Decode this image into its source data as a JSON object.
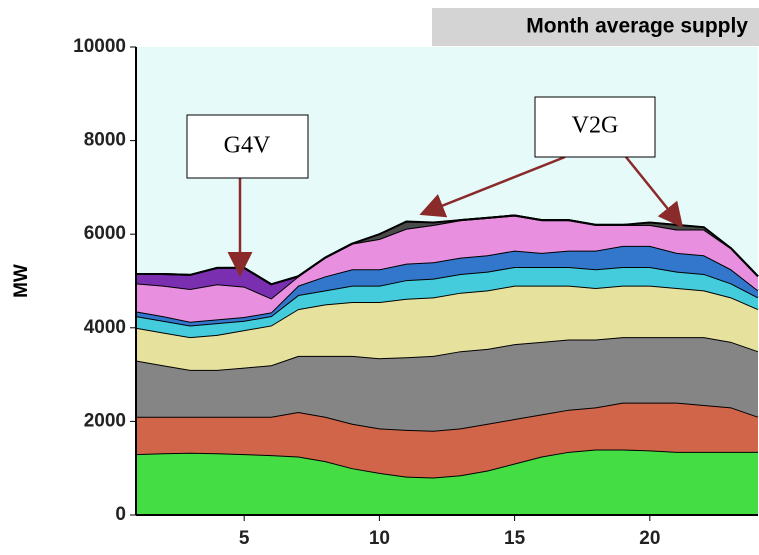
{
  "chart_data": {
    "type": "stacked-area",
    "title": "Month average supply",
    "y_label": "MW",
    "x": [
      1,
      2,
      3,
      4,
      5,
      6,
      7,
      8,
      9,
      10,
      11,
      12,
      13,
      14,
      15,
      16,
      17,
      18,
      19,
      20,
      21,
      22,
      23,
      24
    ],
    "xlim": [
      1,
      24
    ],
    "xticks": [
      5,
      10,
      15,
      20
    ],
    "ylim": [
      0,
      10000
    ],
    "yticks": [
      0,
      2000,
      4000,
      6000,
      8000,
      10000
    ],
    "background": "#e6fafa",
    "series": [
      {
        "color": "#44dd44",
        "values": [
          1300,
          1320,
          1330,
          1320,
          1300,
          1280,
          1250,
          1150,
          1000,
          900,
          820,
          800,
          850,
          950,
          1100,
          1250,
          1350,
          1400,
          1400,
          1380,
          1350,
          1350,
          1350,
          1350
        ]
      },
      {
        "color": "#d0654a",
        "values": [
          800,
          780,
          770,
          780,
          800,
          820,
          950,
          950,
          950,
          950,
          1000,
          1000,
          1000,
          1000,
          950,
          900,
          900,
          900,
          1000,
          1020,
          1050,
          1000,
          950,
          750
        ]
      },
      {
        "color": "#858585",
        "values": [
          1200,
          1100,
          1000,
          1000,
          1050,
          1100,
          1200,
          1300,
          1450,
          1500,
          1550,
          1600,
          1650,
          1600,
          1600,
          1550,
          1500,
          1450,
          1400,
          1400,
          1400,
          1450,
          1400,
          1400
        ]
      },
      {
        "color": "#e6e29e",
        "values": [
          700,
          700,
          700,
          750,
          800,
          850,
          1000,
          1100,
          1150,
          1200,
          1250,
          1250,
          1250,
          1250,
          1250,
          1200,
          1150,
          1100,
          1100,
          1100,
          1050,
          1000,
          950,
          900
        ]
      },
      {
        "color": "#44ccdd",
        "values": [
          250,
          250,
          250,
          250,
          200,
          200,
          300,
          300,
          350,
          350,
          400,
          400,
          400,
          400,
          400,
          400,
          400,
          400,
          400,
          400,
          350,
          350,
          300,
          250
        ]
      },
      {
        "color": "#3377cc",
        "values": [
          100,
          100,
          80,
          80,
          80,
          80,
          200,
          300,
          350,
          350,
          350,
          350,
          350,
          350,
          350,
          300,
          350,
          400,
          450,
          450,
          400,
          400,
          300,
          150
        ]
      },
      {
        "color": "#e98fe0",
        "values": [
          600,
          650,
          700,
          750,
          650,
          300,
          200,
          400,
          550,
          650,
          750,
          800,
          800,
          800,
          750,
          700,
          650,
          550,
          450,
          450,
          500,
          550,
          450,
          300
        ]
      },
      {
        "color": "#7a2fb0",
        "values": [
          200,
          250,
          300,
          350,
          400,
          300,
          0,
          0,
          0,
          0,
          0,
          0,
          0,
          0,
          0,
          0,
          0,
          0,
          0,
          0,
          0,
          0,
          0,
          0
        ]
      },
      {
        "color": "#4a4a4a",
        "values": [
          0,
          0,
          0,
          0,
          0,
          0,
          0,
          0,
          0,
          100,
          150,
          50,
          0,
          0,
          0,
          0,
          0,
          0,
          0,
          50,
          100,
          50,
          0,
          0
        ]
      }
    ],
    "annotations": [
      "G4V",
      "V2G"
    ]
  }
}
